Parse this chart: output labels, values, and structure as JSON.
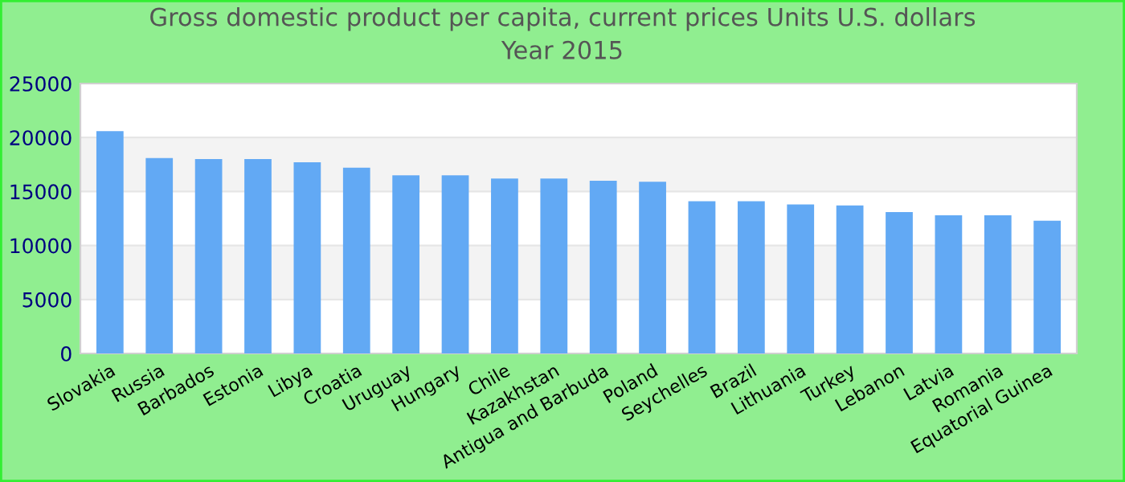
{
  "chart_data": {
    "type": "bar",
    "title": "Gross domestic product per capita, current prices Units U.S. dollars\nYear 2015",
    "categories": [
      "Slovakia",
      "Russia",
      "Barbados",
      "Estonia",
      "Libya",
      "Croatia",
      "Uruguay",
      "Hungary",
      "Chile",
      "Kazakhstan",
      "Antigua and Barbuda",
      "Poland",
      "Seychelles",
      "Brazil",
      "Lithuania",
      "Turkey",
      "Lebanon",
      "Latvia",
      "Romania",
      "Equatorial Guinea"
    ],
    "values": [
      20600,
      18100,
      18000,
      18000,
      17700,
      17200,
      16500,
      16500,
      16200,
      16200,
      16000,
      15900,
      14100,
      14100,
      13800,
      13700,
      13100,
      12800,
      12800,
      12300
    ],
    "color": "#62a9f4",
    "ylim": [
      0,
      25000
    ],
    "yticks": [
      0,
      5000,
      10000,
      15000,
      20000,
      25000
    ],
    "grid": "y"
  }
}
